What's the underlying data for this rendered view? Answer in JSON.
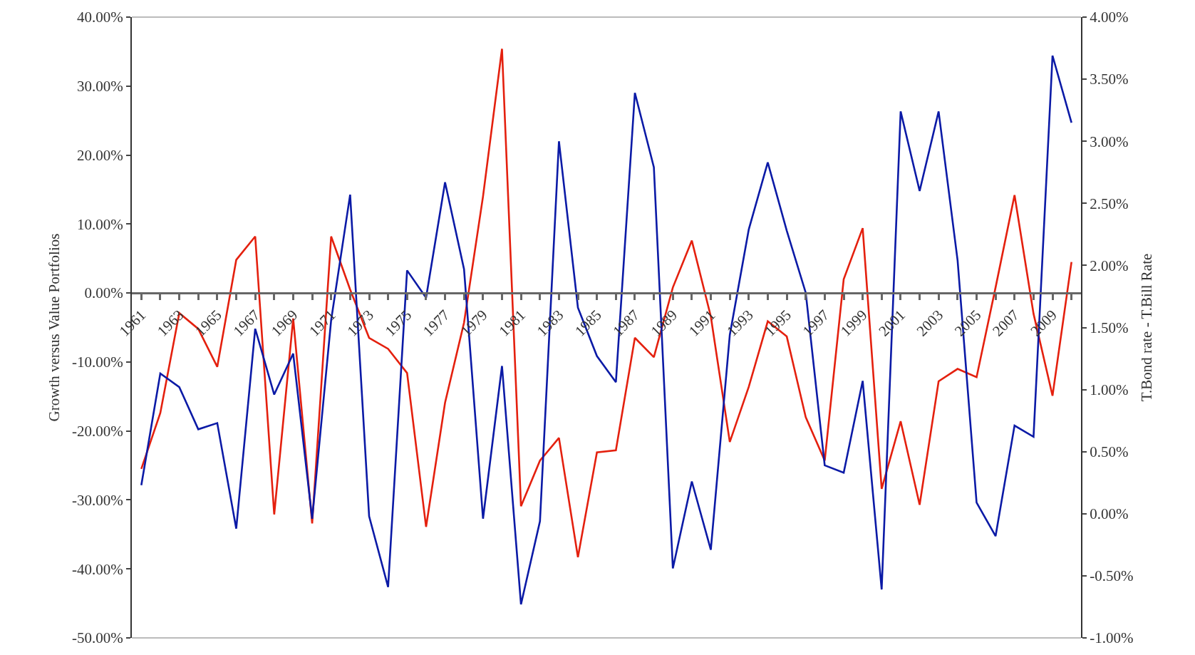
{
  "chart_data": {
    "type": "line",
    "ylabel": "Growth versus Value Portfolios",
    "y2label": "T.Bond rate - T.Bill Rate",
    "x": [
      1961,
      1962,
      1963,
      1964,
      1965,
      1966,
      1967,
      1968,
      1969,
      1970,
      1971,
      1972,
      1973,
      1974,
      1975,
      1976,
      1977,
      1978,
      1979,
      1980,
      1981,
      1982,
      1983,
      1984,
      1985,
      1986,
      1987,
      1988,
      1989,
      1990,
      1991,
      1992,
      1993,
      1994,
      1995,
      1996,
      1997,
      1998,
      1999,
      2000,
      2001,
      2002,
      2003,
      2004,
      2005,
      2006,
      2007,
      2008,
      2009,
      2010
    ],
    "xlim": [
      1960.5,
      2010.5
    ],
    "xticks": [
      1961,
      {
        "value": 1962,
        "label": null
      },
      1963,
      {
        "value": 1964,
        "label": null
      },
      1965,
      {
        "value": 1966,
        "label": null
      },
      1967,
      {
        "value": 1968,
        "label": null
      },
      1969,
      {
        "value": 1970,
        "label": null
      },
      1971,
      {
        "value": 1972,
        "label": null
      },
      1973,
      {
        "value": 1974,
        "label": null
      },
      1975,
      {
        "value": 1976,
        "label": null
      },
      1977,
      {
        "value": 1978,
        "label": null
      },
      1979,
      {
        "value": 1980,
        "label": null
      },
      1981,
      {
        "value": 1982,
        "label": null
      },
      1983,
      {
        "value": 1984,
        "label": null
      },
      1985,
      {
        "value": 1986,
        "label": null
      },
      1987,
      {
        "value": 1988,
        "label": null
      },
      1989,
      {
        "value": 1990,
        "label": null
      },
      1991,
      {
        "value": 1992,
        "label": null
      },
      1993,
      {
        "value": 1994,
        "label": null
      },
      1995,
      {
        "value": 1996,
        "label": null
      },
      1997,
      {
        "value": 1998,
        "label": null
      },
      1999,
      {
        "value": 2000,
        "label": null
      },
      2001,
      {
        "value": 2002,
        "label": null
      },
      2003,
      {
        "value": 2004,
        "label": null
      },
      2005,
      {
        "value": 2006,
        "label": null
      },
      2007,
      {
        "value": 2008,
        "label": null
      },
      2009,
      {
        "value": 2010,
        "label": null
      }
    ],
    "ylim": [
      -50,
      40
    ],
    "yticks": [
      {
        "value": -50,
        "label": "-50.00%"
      },
      {
        "value": -40,
        "label": "-40.00%"
      },
      {
        "value": -30,
        "label": "-30.00%"
      },
      {
        "value": -20,
        "label": "-20.00%"
      },
      {
        "value": -10,
        "label": "-10.00%"
      },
      {
        "value": 0,
        "label": "0.00%"
      },
      {
        "value": 10,
        "label": "10.00%"
      },
      {
        "value": 20,
        "label": "20.00%"
      },
      {
        "value": 30,
        "label": "30.00%"
      },
      {
        "value": 40,
        "label": "40.00%"
      }
    ],
    "y2lim": [
      -1,
      4
    ],
    "y2ticks": [
      {
        "value": -1,
        "label": "-1.00%"
      },
      {
        "value": -0.5,
        "label": "-0.50%"
      },
      {
        "value": 0,
        "label": "0.00%"
      },
      {
        "value": 0.5,
        "label": "0.50%"
      },
      {
        "value": 1,
        "label": "1.00%"
      },
      {
        "value": 1.5,
        "label": "1.50%"
      },
      {
        "value": 2,
        "label": "2.00%"
      },
      {
        "value": 2.5,
        "label": "2.50%"
      },
      {
        "value": 3,
        "label": "3.00%"
      },
      {
        "value": 3.5,
        "label": "3.50%"
      },
      {
        "value": 4,
        "label": "4.00%"
      }
    ],
    "marker": "none",
    "line_style": "solid",
    "series": [
      {
        "color": "#e4200e",
        "values": [
          -25.5,
          -17.4,
          -2.9,
          -5.2,
          -10.7,
          4.8,
          8.2,
          -32.1,
          -3.7,
          -33.4,
          8.2,
          0.5,
          -6.5,
          -8.1,
          -11.6,
          -33.9,
          -15.9,
          -4.3,
          14.0,
          35.4,
          -30.9,
          -24.3,
          -21.0,
          -38.3,
          -23.1,
          -22.8,
          -6.5,
          -9.3,
          0.8,
          7.6,
          -3.4,
          -21.6,
          -13.6,
          -4.1,
          -6.3,
          -18.0,
          -24.3,
          2.0,
          9.4,
          -28.4,
          -18.6,
          -30.7,
          -12.8,
          -11.0,
          -12.2,
          0.8,
          14.2,
          -3.0,
          -14.9,
          4.5
        ]
      },
      {
        "color": "#0b1aa6",
        "axis": "y2",
        "values": [
          0.23,
          1.13,
          1.02,
          0.68,
          0.73,
          -0.12,
          1.49,
          0.96,
          1.29,
          -0.04,
          1.56,
          2.57,
          -0.02,
          -0.59,
          1.96,
          1.74,
          2.67,
          1.97,
          -0.04,
          1.19,
          -0.73,
          -0.06,
          3.0,
          1.66,
          1.27,
          1.06,
          3.39,
          2.79,
          -0.44,
          0.26,
          -0.29,
          1.44,
          2.29,
          2.83,
          2.28,
          1.78,
          0.39,
          0.33,
          1.07,
          -0.61,
          3.24,
          2.6,
          3.24,
          2.04,
          0.09,
          -0.18,
          0.71,
          0.62,
          3.69,
          3.15
        ]
      }
    ]
  }
}
